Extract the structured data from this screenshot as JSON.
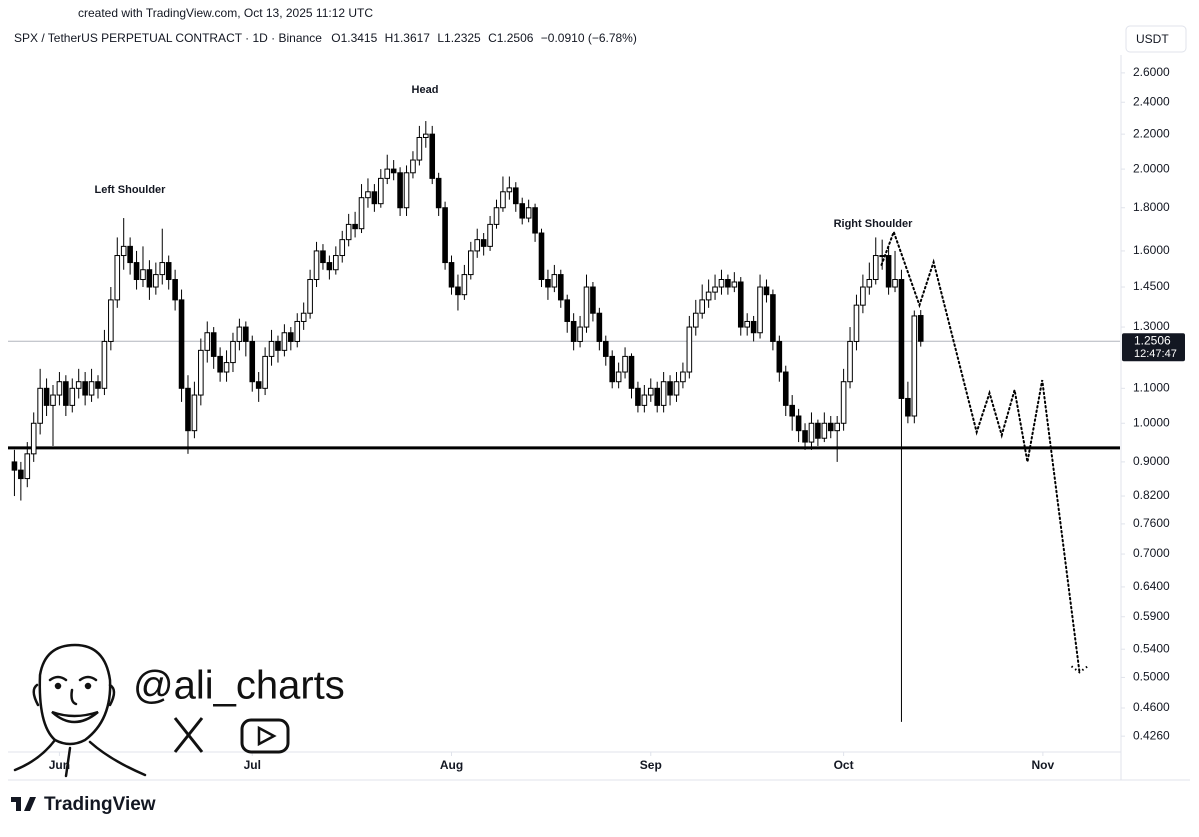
{
  "chart_data": {
    "type": "candlestick",
    "credit": "created with TradingView.com, Oct 13, 2025 11:12 UTC",
    "title": "SPX / TetherUS PERPETUAL CONTRACT · 1D · Binance",
    "ohlc_labels": [
      "O",
      "H",
      "L",
      "C"
    ],
    "change": "−0.0910 (−6.78%)",
    "currency": "USDT",
    "countdown": "12:47:47",
    "annotations": [
      "Left Shoulder",
      "Head",
      "Right Shoulder"
    ],
    "watermark": "@ali_charts",
    "footer": "TradingView",
    "log_scale": true,
    "up_color": "#ffffff",
    "down_color": "#000000",
    "xlim": [
      -1,
      172
    ],
    "xticks": [
      {
        "value": 7,
        "label": "Jun"
      },
      {
        "value": 37,
        "label": "Jul"
      },
      {
        "value": 68,
        "label": "Aug"
      },
      {
        "value": 99,
        "label": "Sep"
      },
      {
        "value": 129,
        "label": "Oct"
      },
      {
        "value": 160,
        "label": "Nov"
      }
    ],
    "ylim": [
      0.408,
      2.73
    ],
    "yticks": [
      {
        "value": 2.6,
        "label": "2.6000"
      },
      {
        "value": 2.4,
        "label": "2.4000"
      },
      {
        "value": 2.2,
        "label": "2.2000"
      },
      {
        "value": 2.0,
        "label": "2.0000"
      },
      {
        "value": 1.8,
        "label": "1.8000"
      },
      {
        "value": 1.6,
        "label": "1.6000"
      },
      {
        "value": 1.45,
        "label": "1.4500"
      },
      {
        "value": 1.3,
        "label": "1.3000"
      },
      {
        "value": 1.1,
        "label": "1.1000"
      },
      {
        "value": 1.0,
        "label": "1.0000"
      },
      {
        "value": 0.9,
        "label": "0.9000"
      },
      {
        "value": 0.82,
        "label": "0.8200"
      },
      {
        "value": 0.76,
        "label": "0.7600"
      },
      {
        "value": 0.7,
        "label": "0.7000"
      },
      {
        "value": 0.64,
        "label": "0.6400"
      },
      {
        "value": 0.59,
        "label": "0.5900"
      },
      {
        "value": 0.54,
        "label": "0.5400"
      },
      {
        "value": 0.5,
        "label": "0.5000"
      },
      {
        "value": 0.46,
        "label": "0.4600"
      },
      {
        "value": 0.426,
        "label": "0.4260"
      }
    ],
    "support_level": 0.935,
    "projection": {
      "x": [
        134.9,
        136.8,
        140.8,
        143.0,
        149.7,
        151.7,
        153.6,
        155.6,
        157.6,
        159.9,
        165.7
      ],
      "values": [
        1.54,
        1.685,
        1.38,
        1.552,
        0.976,
        1.086,
        0.968,
        1.095,
        0.9,
        1.125,
        0.507
      ]
    },
    "candles": [
      [
        0.9,
        0.93,
        0.82,
        0.88
      ],
      [
        0.88,
        0.9,
        0.81,
        0.86
      ],
      [
        0.86,
        0.95,
        0.84,
        0.92
      ],
      [
        0.92,
        1.03,
        0.9,
        1.0
      ],
      [
        1.0,
        1.16,
        0.97,
        1.1
      ],
      [
        1.1,
        1.13,
        1.02,
        1.05
      ],
      [
        1.05,
        1.11,
        0.94,
        1.08
      ],
      [
        1.08,
        1.15,
        1.05,
        1.12
      ],
      [
        1.12,
        1.14,
        1.02,
        1.05
      ],
      [
        1.05,
        1.13,
        1.03,
        1.1
      ],
      [
        1.1,
        1.16,
        1.07,
        1.12
      ],
      [
        1.12,
        1.15,
        1.05,
        1.08
      ],
      [
        1.08,
        1.16,
        1.06,
        1.12
      ],
      [
        1.12,
        1.14,
        1.07,
        1.1
      ],
      [
        1.1,
        1.29,
        1.08,
        1.25
      ],
      [
        1.25,
        1.45,
        1.22,
        1.4
      ],
      [
        1.4,
        1.66,
        1.37,
        1.58
      ],
      [
        1.58,
        1.75,
        1.52,
        1.62
      ],
      [
        1.62,
        1.66,
        1.5,
        1.55
      ],
      [
        1.55,
        1.6,
        1.44,
        1.48
      ],
      [
        1.48,
        1.62,
        1.45,
        1.52
      ],
      [
        1.52,
        1.56,
        1.4,
        1.45
      ],
      [
        1.45,
        1.55,
        1.42,
        1.5
      ],
      [
        1.5,
        1.7,
        1.46,
        1.55
      ],
      [
        1.55,
        1.58,
        1.44,
        1.48
      ],
      [
        1.48,
        1.52,
        1.36,
        1.4
      ],
      [
        1.4,
        1.44,
        1.06,
        1.1
      ],
      [
        1.1,
        1.14,
        0.92,
        0.98
      ],
      [
        0.98,
        1.12,
        0.96,
        1.08
      ],
      [
        1.08,
        1.26,
        1.05,
        1.22
      ],
      [
        1.22,
        1.32,
        1.18,
        1.28
      ],
      [
        1.28,
        1.3,
        1.16,
        1.2
      ],
      [
        1.2,
        1.23,
        1.12,
        1.15
      ],
      [
        1.15,
        1.22,
        1.12,
        1.18
      ],
      [
        1.18,
        1.28,
        1.15,
        1.25
      ],
      [
        1.25,
        1.33,
        1.22,
        1.3
      ],
      [
        1.3,
        1.32,
        1.2,
        1.25
      ],
      [
        1.25,
        1.27,
        1.09,
        1.12
      ],
      [
        1.12,
        1.15,
        1.06,
        1.1
      ],
      [
        1.1,
        1.23,
        1.08,
        1.2
      ],
      [
        1.2,
        1.29,
        1.17,
        1.25
      ],
      [
        1.25,
        1.27,
        1.18,
        1.22
      ],
      [
        1.22,
        1.31,
        1.2,
        1.28
      ],
      [
        1.28,
        1.3,
        1.22,
        1.25
      ],
      [
        1.25,
        1.35,
        1.23,
        1.32
      ],
      [
        1.32,
        1.39,
        1.29,
        1.35
      ],
      [
        1.35,
        1.52,
        1.33,
        1.48
      ],
      [
        1.48,
        1.64,
        1.45,
        1.6
      ],
      [
        1.6,
        1.63,
        1.52,
        1.55
      ],
      [
        1.55,
        1.58,
        1.48,
        1.52
      ],
      [
        1.52,
        1.62,
        1.5,
        1.58
      ],
      [
        1.58,
        1.69,
        1.55,
        1.65
      ],
      [
        1.65,
        1.77,
        1.62,
        1.72
      ],
      [
        1.72,
        1.78,
        1.66,
        1.7
      ],
      [
        1.7,
        1.92,
        1.68,
        1.85
      ],
      [
        1.85,
        1.95,
        1.8,
        1.88
      ],
      [
        1.88,
        1.92,
        1.78,
        1.82
      ],
      [
        1.82,
        2.0,
        1.8,
        1.95
      ],
      [
        1.95,
        2.08,
        1.92,
        2.0
      ],
      [
        2.0,
        2.05,
        1.94,
        1.98
      ],
      [
        1.98,
        2.01,
        1.76,
        1.8
      ],
      [
        1.8,
        2.02,
        1.76,
        1.98
      ],
      [
        1.98,
        2.1,
        1.95,
        2.05
      ],
      [
        2.05,
        2.25,
        2.02,
        2.18
      ],
      [
        2.18,
        2.28,
        2.12,
        2.2
      ],
      [
        2.2,
        2.25,
        1.92,
        1.95
      ],
      [
        1.95,
        1.98,
        1.76,
        1.8
      ],
      [
        1.8,
        1.83,
        1.52,
        1.55
      ],
      [
        1.55,
        1.58,
        1.42,
        1.45
      ],
      [
        1.45,
        1.5,
        1.36,
        1.42
      ],
      [
        1.42,
        1.54,
        1.4,
        1.5
      ],
      [
        1.5,
        1.64,
        1.48,
        1.6
      ],
      [
        1.6,
        1.7,
        1.57,
        1.65
      ],
      [
        1.65,
        1.68,
        1.58,
        1.62
      ],
      [
        1.62,
        1.76,
        1.6,
        1.72
      ],
      [
        1.72,
        1.84,
        1.7,
        1.8
      ],
      [
        1.8,
        1.96,
        1.78,
        1.88
      ],
      [
        1.88,
        1.96,
        1.84,
        1.9
      ],
      [
        1.9,
        1.93,
        1.78,
        1.82
      ],
      [
        1.82,
        1.85,
        1.72,
        1.75
      ],
      [
        1.75,
        1.84,
        1.73,
        1.8
      ],
      [
        1.8,
        1.82,
        1.64,
        1.68
      ],
      [
        1.68,
        1.7,
        1.45,
        1.48
      ],
      [
        1.48,
        1.52,
        1.4,
        1.45
      ],
      [
        1.45,
        1.54,
        1.43,
        1.5
      ],
      [
        1.5,
        1.52,
        1.37,
        1.4
      ],
      [
        1.4,
        1.42,
        1.28,
        1.32
      ],
      [
        1.32,
        1.35,
        1.22,
        1.25
      ],
      [
        1.25,
        1.34,
        1.23,
        1.3
      ],
      [
        1.3,
        1.5,
        1.28,
        1.45
      ],
      [
        1.45,
        1.47,
        1.32,
        1.35
      ],
      [
        1.35,
        1.37,
        1.22,
        1.25
      ],
      [
        1.25,
        1.27,
        1.17,
        1.2
      ],
      [
        1.2,
        1.22,
        1.1,
        1.12
      ],
      [
        1.12,
        1.18,
        1.1,
        1.15
      ],
      [
        1.15,
        1.23,
        1.13,
        1.2
      ],
      [
        1.2,
        1.21,
        1.07,
        1.1
      ],
      [
        1.1,
        1.12,
        1.03,
        1.05
      ],
      [
        1.05,
        1.11,
        1.03,
        1.08
      ],
      [
        1.08,
        1.13,
        1.06,
        1.1
      ],
      [
        1.1,
        1.12,
        1.03,
        1.05
      ],
      [
        1.05,
        1.15,
        1.03,
        1.12
      ],
      [
        1.12,
        1.14,
        1.05,
        1.08
      ],
      [
        1.08,
        1.15,
        1.06,
        1.12
      ],
      [
        1.12,
        1.18,
        1.1,
        1.15
      ],
      [
        1.15,
        1.34,
        1.13,
        1.3
      ],
      [
        1.3,
        1.4,
        1.27,
        1.35
      ],
      [
        1.35,
        1.46,
        1.33,
        1.4
      ],
      [
        1.4,
        1.48,
        1.37,
        1.43
      ],
      [
        1.43,
        1.5,
        1.4,
        1.45
      ],
      [
        1.45,
        1.52,
        1.42,
        1.48
      ],
      [
        1.48,
        1.5,
        1.42,
        1.45
      ],
      [
        1.45,
        1.51,
        1.43,
        1.47
      ],
      [
        1.47,
        1.49,
        1.27,
        1.3
      ],
      [
        1.3,
        1.35,
        1.27,
        1.32
      ],
      [
        1.32,
        1.34,
        1.25,
        1.28
      ],
      [
        1.28,
        1.5,
        1.26,
        1.45
      ],
      [
        1.45,
        1.48,
        1.39,
        1.42
      ],
      [
        1.42,
        1.44,
        1.22,
        1.25
      ],
      [
        1.25,
        1.27,
        1.12,
        1.15
      ],
      [
        1.15,
        1.17,
        1.02,
        1.05
      ],
      [
        1.05,
        1.08,
        0.98,
        1.02
      ],
      [
        1.02,
        1.04,
        0.95,
        0.98
      ],
      [
        0.98,
        1.0,
        0.93,
        0.95
      ],
      [
        0.95,
        1.03,
        0.93,
        1.0
      ],
      [
        1.0,
        1.01,
        0.94,
        0.96
      ],
      [
        0.96,
        1.03,
        0.95,
        1.0
      ],
      [
        1.0,
        1.02,
        0.96,
        0.98
      ],
      [
        0.98,
        1.02,
        0.9,
        1.0
      ],
      [
        1.0,
        1.16,
        0.98,
        1.12
      ],
      [
        1.12,
        1.3,
        1.1,
        1.25
      ],
      [
        1.25,
        1.42,
        1.22,
        1.38
      ],
      [
        1.38,
        1.5,
        1.35,
        1.45
      ],
      [
        1.45,
        1.55,
        1.42,
        1.48
      ],
      [
        1.48,
        1.66,
        1.46,
        1.58
      ],
      [
        1.58,
        1.65,
        1.52,
        1.58
      ],
      [
        1.58,
        1.62,
        1.42,
        1.45
      ],
      [
        1.45,
        1.6,
        1.43,
        1.48
      ],
      [
        1.48,
        1.52,
        0.443,
        1.07
      ],
      [
        1.07,
        1.12,
        1.0,
        1.02
      ],
      [
        1.02,
        1.36,
        1.0,
        1.34
      ],
      [
        1.3415,
        1.3617,
        1.2325,
        1.2506
      ]
    ]
  }
}
